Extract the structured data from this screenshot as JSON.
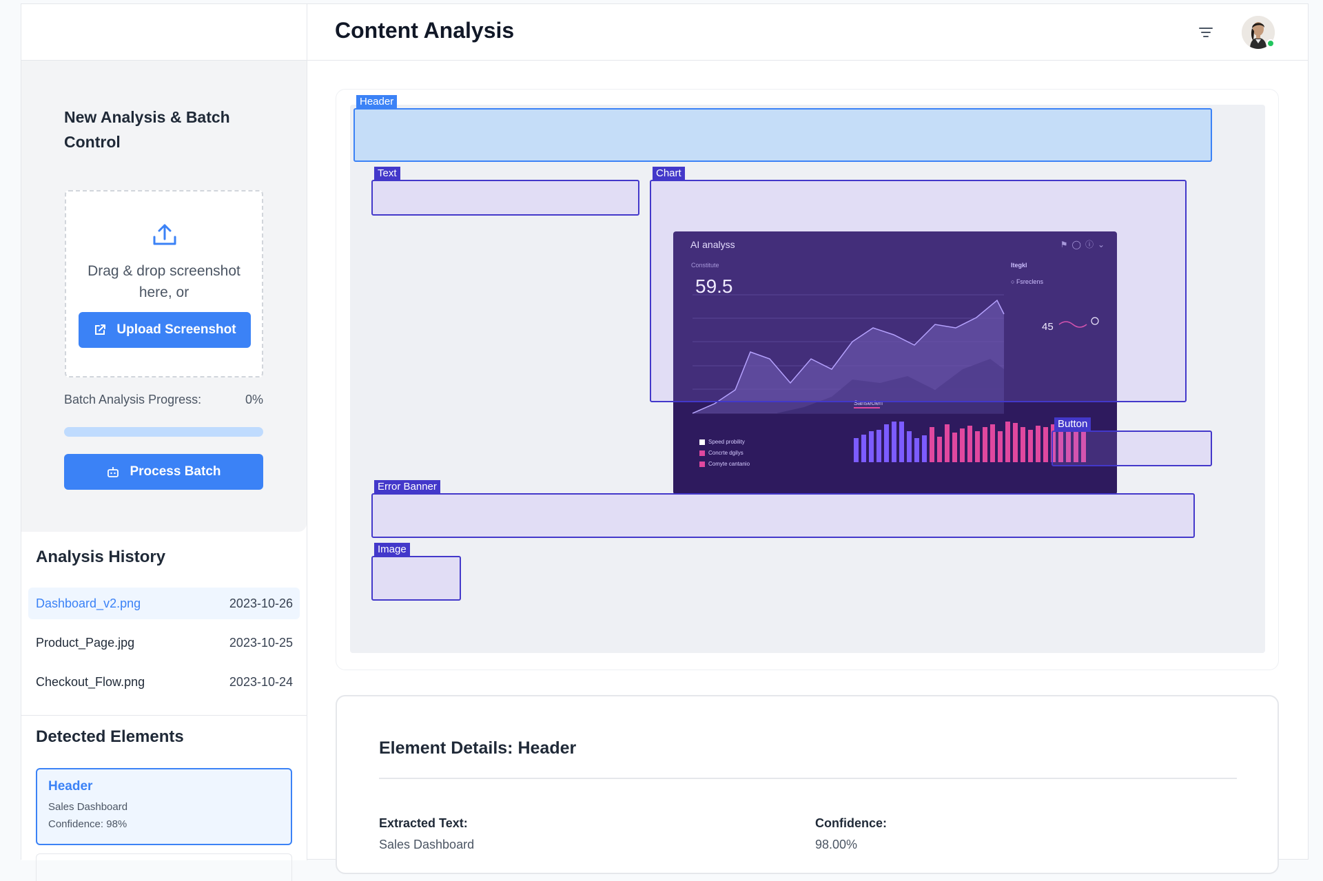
{
  "header": {
    "title": "Content Analysis",
    "filter_icon": "filter-icon",
    "avatar_icon": "user-avatar"
  },
  "control": {
    "title": "New Analysis & Batch Control",
    "drop_text": "Drag & drop screenshot here, or",
    "upload_label": "Upload Screenshot",
    "progress_label": "Batch Analysis Progress:",
    "progress_value": "0%",
    "progress_fraction": 0,
    "process_label": "Process Batch"
  },
  "history": {
    "title": "Analysis History",
    "items": [
      {
        "name": "Dashboard_v2.png",
        "date": "2023-10-26",
        "active": true
      },
      {
        "name": "Product_Page.jpg",
        "date": "2023-10-25",
        "active": false
      },
      {
        "name": "Checkout_Flow.png",
        "date": "2023-10-24",
        "active": false
      }
    ]
  },
  "detected": {
    "title": "Detected Elements",
    "items": [
      {
        "type": "Header",
        "text": "Sales Dashboard",
        "confidence": "Confidence: 98%"
      }
    ]
  },
  "canvas": {
    "labels": {
      "header": "Header",
      "text": "Text",
      "chart": "Chart",
      "button": "Button",
      "error_banner": "Error Banner",
      "image": "Image"
    },
    "screenshot": {
      "title": "AI analyss",
      "sub": "Constitute",
      "big_value": "59.5",
      "right_title": "Itegkl",
      "right_item": "Fsreclens",
      "right_value": "45",
      "section": "Sanseclen",
      "legend": [
        "Speed probility",
        "Concrte dgilys",
        "Comyte cantanio"
      ]
    }
  },
  "details": {
    "title": "Element Details: Header",
    "extracted_label": "Extracted Text:",
    "extracted_value": "Sales Dashboard",
    "confidence_label": "Confidence:",
    "confidence_value": "98.00%"
  },
  "colors": {
    "accent": "#3b82f6",
    "box": "#4338ca",
    "panel": "#f3f4f6"
  }
}
